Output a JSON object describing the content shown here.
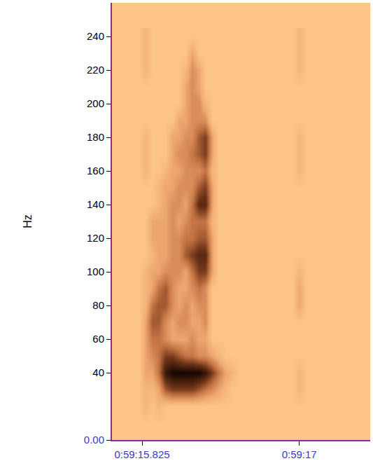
{
  "chart_data": {
    "type": "heatmap",
    "y_label": "Hz",
    "x": [
      3555.8,
      3555.85,
      3555.9,
      3555.95,
      3556.0,
      3556.05,
      3556.1,
      3556.15,
      3556.2,
      3556.25,
      3556.3,
      3556.35,
      3556.4,
      3556.45,
      3556.5,
      3556.55,
      3556.6,
      3556.65,
      3556.7,
      3556.75,
      3556.8,
      3556.85,
      3556.9,
      3556.95,
      3557.0,
      3557.05,
      3557.1
    ],
    "y": [
      0,
      10,
      20,
      30,
      40,
      50,
      60,
      70,
      80,
      90,
      100,
      110,
      120,
      130,
      140,
      150,
      160,
      170,
      180,
      190,
      200,
      210,
      220,
      230,
      240
    ],
    "z": [
      [
        0,
        0,
        0,
        0,
        0,
        0,
        0,
        0,
        0,
        0,
        0,
        0,
        0,
        0,
        0,
        0,
        0,
        0,
        0,
        0,
        0,
        0,
        0,
        0,
        0,
        0,
        0
      ],
      [
        0,
        0,
        0,
        0,
        0,
        0,
        0,
        0,
        0,
        0,
        0,
        0,
        0,
        0,
        0,
        0,
        0,
        0,
        0,
        0,
        0,
        0,
        0,
        0,
        0,
        0,
        0
      ],
      [
        0,
        1,
        0,
        1,
        0,
        0,
        0,
        0,
        0,
        0,
        0,
        0,
        0,
        0,
        0,
        0,
        0,
        0,
        0,
        0,
        0,
        0,
        0,
        0,
        0,
        0,
        0
      ],
      [
        0,
        1,
        1,
        2,
        5,
        6,
        6,
        6,
        6,
        5,
        4,
        3,
        2,
        1,
        0,
        0,
        0,
        0,
        0,
        0,
        0,
        0,
        0,
        0,
        1,
        0,
        0
      ],
      [
        0,
        2,
        2,
        4,
        8,
        9,
        9,
        9,
        9,
        9,
        8,
        6,
        4,
        2,
        1,
        0,
        0,
        0,
        0,
        0,
        0,
        0,
        0,
        0,
        1,
        0,
        0
      ],
      [
        0,
        2,
        3,
        4,
        6,
        6,
        5,
        4,
        4,
        3,
        3,
        2,
        1,
        0,
        0,
        0,
        0,
        0,
        0,
        0,
        0,
        0,
        0,
        0,
        0,
        0,
        0
      ],
      [
        0,
        2,
        4,
        4,
        3,
        2,
        2,
        2,
        3,
        2,
        2,
        0,
        0,
        0,
        0,
        0,
        0,
        0,
        0,
        0,
        0,
        0,
        0,
        0,
        0,
        0,
        0
      ],
      [
        0,
        2,
        5,
        5,
        3,
        2,
        3,
        3,
        2,
        2,
        3,
        0,
        0,
        0,
        0,
        0,
        0,
        0,
        0,
        0,
        0,
        0,
        0,
        0,
        0,
        0,
        0
      ],
      [
        0,
        1,
        4,
        5,
        5,
        3,
        2,
        3,
        2,
        3,
        3,
        0,
        0,
        0,
        0,
        0,
        0,
        0,
        0,
        0,
        0,
        0,
        0,
        0,
        2,
        0,
        0
      ],
      [
        0,
        1,
        2,
        4,
        5,
        3,
        2,
        2,
        3,
        4,
        3,
        0,
        0,
        0,
        0,
        0,
        0,
        0,
        0,
        0,
        0,
        0,
        0,
        0,
        2,
        0,
        0
      ],
      [
        0,
        1,
        2,
        2,
        3,
        3,
        3,
        2,
        4,
        6,
        6,
        2,
        0,
        0,
        0,
        0,
        0,
        0,
        0,
        0,
        0,
        0,
        0,
        0,
        1,
        0,
        0
      ],
      [
        0,
        0,
        1,
        2,
        2,
        3,
        3,
        5,
        6,
        7,
        7,
        2,
        0,
        0,
        0,
        0,
        0,
        0,
        0,
        0,
        0,
        0,
        0,
        0,
        0,
        0,
        0
      ],
      [
        0,
        0,
        2,
        2,
        2,
        3,
        3,
        4,
        4,
        5,
        5,
        2,
        0,
        0,
        0,
        0,
        0,
        0,
        0,
        0,
        0,
        0,
        0,
        0,
        0,
        0,
        0
      ],
      [
        0,
        0,
        2,
        2,
        2,
        3,
        2,
        3,
        4,
        4,
        4,
        1,
        0,
        0,
        0,
        0,
        0,
        0,
        0,
        0,
        0,
        0,
        0,
        0,
        0,
        0,
        0
      ],
      [
        0,
        0,
        0,
        1,
        2,
        3,
        3,
        2,
        4,
        7,
        7,
        2,
        0,
        0,
        0,
        0,
        0,
        0,
        0,
        0,
        0,
        0,
        0,
        0,
        0,
        0,
        0
      ],
      [
        0,
        0,
        0,
        1,
        2,
        2,
        3,
        3,
        3,
        5,
        6,
        2,
        0,
        0,
        0,
        0,
        0,
        0,
        0,
        0,
        0,
        0,
        0,
        0,
        0,
        0,
        0
      ],
      [
        0,
        1,
        0,
        0,
        1,
        2,
        2,
        3,
        3,
        3,
        4,
        1,
        0,
        0,
        0,
        0,
        0,
        0,
        0,
        0,
        0,
        0,
        0,
        0,
        1,
        0,
        0
      ],
      [
        0,
        1,
        0,
        0,
        0,
        2,
        3,
        3,
        4,
        5,
        6,
        2,
        0,
        0,
        0,
        0,
        0,
        0,
        0,
        0,
        0,
        0,
        0,
        0,
        1,
        0,
        0
      ],
      [
        0,
        1,
        0,
        0,
        0,
        2,
        2,
        3,
        3,
        5,
        6,
        2,
        0,
        0,
        0,
        0,
        0,
        0,
        0,
        0,
        0,
        0,
        0,
        0,
        1,
        0,
        0
      ],
      [
        0,
        0,
        0,
        0,
        0,
        0,
        2,
        2,
        3,
        3,
        3,
        0,
        0,
        0,
        0,
        0,
        0,
        0,
        0,
        0,
        0,
        0,
        0,
        0,
        0,
        0,
        0
      ],
      [
        0,
        0,
        0,
        0,
        0,
        0,
        0,
        2,
        3,
        3,
        1,
        0,
        0,
        0,
        0,
        0,
        0,
        0,
        0,
        0,
        0,
        0,
        0,
        0,
        0,
        0,
        0
      ],
      [
        0,
        0,
        0,
        0,
        0,
        0,
        0,
        2,
        3,
        2,
        0,
        0,
        0,
        0,
        0,
        0,
        0,
        0,
        0,
        0,
        0,
        0,
        0,
        0,
        0,
        0,
        0
      ],
      [
        0,
        1,
        0,
        0,
        0,
        0,
        0,
        1,
        3,
        2,
        0,
        0,
        0,
        0,
        0,
        0,
        0,
        0,
        0,
        0,
        0,
        0,
        0,
        0,
        1,
        0,
        0
      ],
      [
        0,
        1,
        0,
        0,
        0,
        0,
        0,
        0,
        2,
        0,
        0,
        0,
        0,
        0,
        0,
        0,
        0,
        0,
        0,
        0,
        0,
        0,
        0,
        0,
        1,
        0,
        0
      ],
      [
        0,
        1,
        0,
        0,
        0,
        0,
        0,
        0,
        0,
        0,
        0,
        0,
        0,
        0,
        0,
        0,
        0,
        0,
        0,
        0,
        0,
        0,
        0,
        0,
        1,
        0,
        0
      ]
    ],
    "zlim": [
      0,
      9
    ],
    "xlim": [
      3555.6,
      3557.53
    ],
    "xticks": [
      {
        "value": 3555.825,
        "label": "0:59:15.825"
      },
      {
        "value": 3557,
        "label": "0:59:17"
      }
    ],
    "ylim": [
      0,
      260
    ],
    "yticks": [
      {
        "value": 0,
        "label": "0.00"
      },
      40,
      60,
      80,
      100,
      120,
      140,
      160,
      180,
      200,
      220,
      240
    ],
    "grid": false
  }
}
